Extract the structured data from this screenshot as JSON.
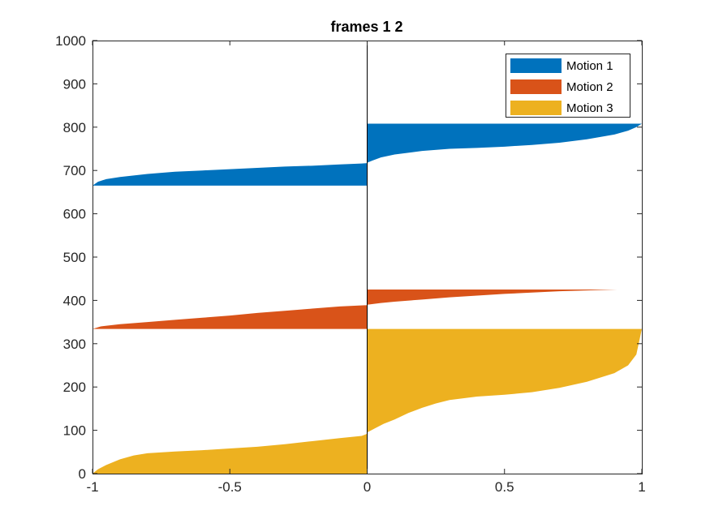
{
  "chart_data": {
    "type": "area",
    "title": "frames 1 2",
    "xlabel": "",
    "ylabel": "",
    "xlim": [
      -1,
      1
    ],
    "ylim": [
      0,
      1000
    ],
    "xticks": [
      -1,
      -0.5,
      0,
      0.5,
      1
    ],
    "xtick_labels": [
      "-1",
      "-0.5",
      "0",
      "0.5",
      "1"
    ],
    "yticks": [
      0,
      100,
      200,
      300,
      400,
      500,
      600,
      700,
      800,
      900,
      1000
    ],
    "ytick_labels": [
      "0",
      "100",
      "200",
      "300",
      "400",
      "500",
      "600",
      "700",
      "800",
      "900",
      "1000"
    ],
    "grid": false,
    "legend_position": "top-right",
    "series": [
      {
        "name": "Motion 1",
        "color": "#0072BD",
        "y_range": [
          665,
          808
        ],
        "points": [
          {
            "x": -1.0,
            "y": 665
          },
          {
            "x": -0.98,
            "y": 674
          },
          {
            "x": -0.95,
            "y": 680
          },
          {
            "x": -0.9,
            "y": 685
          },
          {
            "x": -0.8,
            "y": 692
          },
          {
            "x": -0.7,
            "y": 697
          },
          {
            "x": -0.6,
            "y": 700
          },
          {
            "x": -0.5,
            "y": 703
          },
          {
            "x": -0.4,
            "y": 706
          },
          {
            "x": -0.3,
            "y": 709
          },
          {
            "x": -0.2,
            "y": 711
          },
          {
            "x": -0.1,
            "y": 714
          },
          {
            "x": -0.02,
            "y": 716
          },
          {
            "x": 0.0,
            "y": 717
          },
          {
            "x": 0.0,
            "y": 718
          },
          {
            "x": 0.02,
            "y": 723
          },
          {
            "x": 0.05,
            "y": 730
          },
          {
            "x": 0.1,
            "y": 737
          },
          {
            "x": 0.2,
            "y": 745
          },
          {
            "x": 0.3,
            "y": 750
          },
          {
            "x": 0.4,
            "y": 752
          },
          {
            "x": 0.5,
            "y": 755
          },
          {
            "x": 0.6,
            "y": 759
          },
          {
            "x": 0.7,
            "y": 764
          },
          {
            "x": 0.8,
            "y": 772
          },
          {
            "x": 0.9,
            "y": 783
          },
          {
            "x": 0.95,
            "y": 792
          },
          {
            "x": 0.98,
            "y": 800
          },
          {
            "x": 1.0,
            "y": 808
          }
        ]
      },
      {
        "name": "Motion 2",
        "color": "#D95319",
        "y_range": [
          334,
          425
        ],
        "points": [
          {
            "x": -1.0,
            "y": 334
          },
          {
            "x": -0.97,
            "y": 340
          },
          {
            "x": -0.9,
            "y": 345
          },
          {
            "x": -0.8,
            "y": 350
          },
          {
            "x": -0.7,
            "y": 355
          },
          {
            "x": -0.6,
            "y": 360
          },
          {
            "x": -0.5,
            "y": 365
          },
          {
            "x": -0.4,
            "y": 371
          },
          {
            "x": -0.3,
            "y": 376
          },
          {
            "x": -0.2,
            "y": 381
          },
          {
            "x": -0.1,
            "y": 386
          },
          {
            "x": 0.0,
            "y": 389
          },
          {
            "x": 0.0,
            "y": 390
          },
          {
            "x": 0.05,
            "y": 394
          },
          {
            "x": 0.1,
            "y": 397
          },
          {
            "x": 0.2,
            "y": 402
          },
          {
            "x": 0.3,
            "y": 407
          },
          {
            "x": 0.4,
            "y": 411
          },
          {
            "x": 0.5,
            "y": 415
          },
          {
            "x": 0.6,
            "y": 418
          },
          {
            "x": 0.7,
            "y": 421
          },
          {
            "x": 0.8,
            "y": 423
          },
          {
            "x": 0.91,
            "y": 425
          }
        ]
      },
      {
        "name": "Motion 3",
        "color": "#EDB120",
        "y_range": [
          0,
          334
        ],
        "points": [
          {
            "x": -1.0,
            "y": 0
          },
          {
            "x": -0.98,
            "y": 10
          },
          {
            "x": -0.95,
            "y": 20
          },
          {
            "x": -0.9,
            "y": 33
          },
          {
            "x": -0.85,
            "y": 42
          },
          {
            "x": -0.8,
            "y": 47
          },
          {
            "x": -0.7,
            "y": 51
          },
          {
            "x": -0.6,
            "y": 54
          },
          {
            "x": -0.5,
            "y": 58
          },
          {
            "x": -0.4,
            "y": 62
          },
          {
            "x": -0.3,
            "y": 68
          },
          {
            "x": -0.2,
            "y": 75
          },
          {
            "x": -0.1,
            "y": 82
          },
          {
            "x": -0.02,
            "y": 87
          },
          {
            "x": 0.0,
            "y": 92
          },
          {
            "x": 0.0,
            "y": 95
          },
          {
            "x": 0.03,
            "y": 105
          },
          {
            "x": 0.06,
            "y": 115
          },
          {
            "x": 0.1,
            "y": 125
          },
          {
            "x": 0.15,
            "y": 140
          },
          {
            "x": 0.2,
            "y": 152
          },
          {
            "x": 0.25,
            "y": 162
          },
          {
            "x": 0.3,
            "y": 170
          },
          {
            "x": 0.4,
            "y": 178
          },
          {
            "x": 0.5,
            "y": 182
          },
          {
            "x": 0.6,
            "y": 188
          },
          {
            "x": 0.7,
            "y": 198
          },
          {
            "x": 0.8,
            "y": 212
          },
          {
            "x": 0.9,
            "y": 232
          },
          {
            "x": 0.95,
            "y": 250
          },
          {
            "x": 0.98,
            "y": 275
          },
          {
            "x": 1.0,
            "y": 334
          }
        ]
      }
    ]
  }
}
